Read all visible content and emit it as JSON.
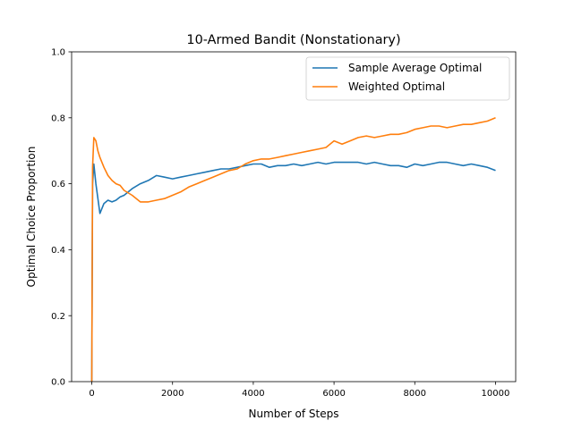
{
  "chart_data": {
    "type": "line",
    "title": "10-Armed Bandit (Nonstationary)",
    "xlabel": "Number of Steps",
    "ylabel": "Optimal Choice Proportion",
    "xlim": [
      -500,
      10500
    ],
    "ylim": [
      0,
      1
    ],
    "xticks": [
      0,
      2000,
      4000,
      6000,
      8000,
      10000
    ],
    "yticks": [
      0.0,
      0.2,
      0.4,
      0.6,
      0.8,
      1.0
    ],
    "xtick_labels": [
      "0",
      "2000",
      "4000",
      "6000",
      "8000",
      "10000"
    ],
    "ytick_labels": [
      "0.0",
      "0.2",
      "0.4",
      "0.6",
      "0.8",
      "1.0"
    ],
    "grid": false,
    "legend_position": "top-right",
    "series": [
      {
        "name": "Sample Average Optimal",
        "color": "#1f77b4",
        "x": [
          0,
          20,
          50,
          100,
          200,
          300,
          400,
          500,
          600,
          700,
          800,
          1000,
          1200,
          1400,
          1600,
          1800,
          2000,
          2200,
          2400,
          2600,
          2800,
          3000,
          3200,
          3400,
          3600,
          3800,
          4000,
          4200,
          4400,
          4600,
          4800,
          5000,
          5200,
          5400,
          5600,
          5800,
          6000,
          6200,
          6400,
          6600,
          6800,
          7000,
          7200,
          7400,
          7600,
          7800,
          8000,
          8200,
          8400,
          8600,
          8800,
          9000,
          9200,
          9400,
          9600,
          9800,
          10000
        ],
        "y": [
          0.0,
          0.6,
          0.66,
          0.6,
          0.51,
          0.54,
          0.55,
          0.545,
          0.55,
          0.56,
          0.565,
          0.585,
          0.6,
          0.61,
          0.625,
          0.62,
          0.615,
          0.62,
          0.625,
          0.63,
          0.635,
          0.64,
          0.645,
          0.645,
          0.65,
          0.655,
          0.66,
          0.66,
          0.65,
          0.655,
          0.655,
          0.66,
          0.655,
          0.66,
          0.665,
          0.66,
          0.665,
          0.665,
          0.665,
          0.665,
          0.66,
          0.665,
          0.66,
          0.655,
          0.655,
          0.65,
          0.66,
          0.655,
          0.66,
          0.665,
          0.665,
          0.66,
          0.655,
          0.66,
          0.655,
          0.65,
          0.64
        ]
      },
      {
        "name": "Weighted Optimal",
        "color": "#ff7f0e",
        "x": [
          0,
          20,
          50,
          100,
          150,
          200,
          300,
          400,
          500,
          600,
          700,
          800,
          1000,
          1200,
          1400,
          1600,
          1800,
          2000,
          2200,
          2400,
          2600,
          2800,
          3000,
          3200,
          3400,
          3600,
          3800,
          4000,
          4200,
          4400,
          4600,
          4800,
          5000,
          5200,
          5400,
          5600,
          5800,
          6000,
          6200,
          6400,
          6600,
          6800,
          7000,
          7200,
          7400,
          7600,
          7800,
          8000,
          8200,
          8400,
          8600,
          8800,
          9000,
          9200,
          9400,
          9600,
          9800,
          10000
        ],
        "y": [
          0.0,
          0.65,
          0.74,
          0.73,
          0.7,
          0.68,
          0.65,
          0.625,
          0.61,
          0.6,
          0.595,
          0.58,
          0.565,
          0.545,
          0.545,
          0.55,
          0.555,
          0.565,
          0.575,
          0.59,
          0.6,
          0.61,
          0.62,
          0.63,
          0.64,
          0.645,
          0.66,
          0.67,
          0.675,
          0.675,
          0.68,
          0.685,
          0.69,
          0.695,
          0.7,
          0.705,
          0.71,
          0.73,
          0.72,
          0.73,
          0.74,
          0.745,
          0.74,
          0.745,
          0.75,
          0.75,
          0.755,
          0.765,
          0.77,
          0.775,
          0.775,
          0.77,
          0.775,
          0.78,
          0.78,
          0.785,
          0.79,
          0.8
        ]
      }
    ]
  }
}
